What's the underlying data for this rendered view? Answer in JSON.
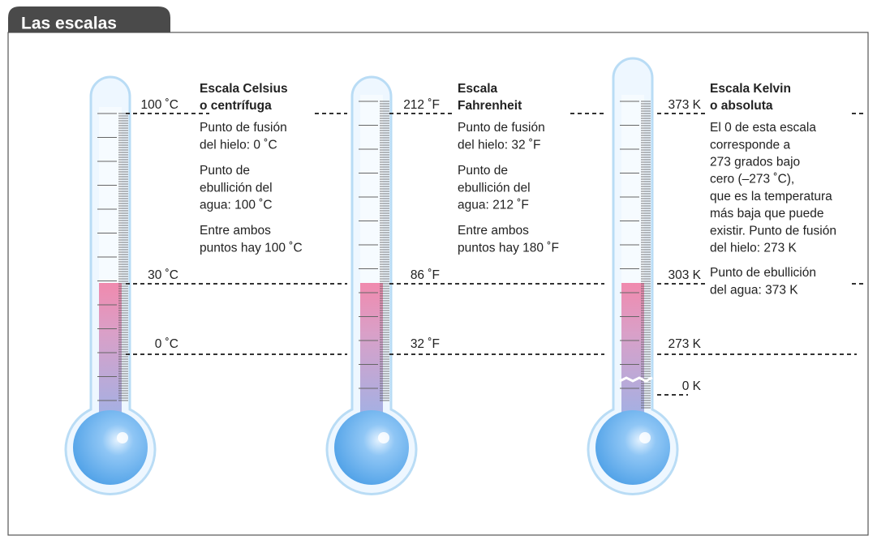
{
  "header": {
    "title": "Las escalas"
  },
  "thermometers": [
    {
      "title": [
        "Escala Celsius",
        "o centrífuga"
      ],
      "marks": [
        "100 ˚C",
        "30 ˚C",
        "0 ˚C"
      ],
      "paragraphs": [
        [
          "Punto de fusión",
          "del hielo: 0 ˚C"
        ],
        [
          "Punto de",
          "ebullición del",
          "agua: 100 ˚C"
        ],
        [
          "Entre ambos",
          "puntos hay 100 ˚C"
        ]
      ]
    },
    {
      "title": [
        "Escala",
        "Fahrenheit"
      ],
      "marks": [
        "212 ˚F",
        "86 ˚F",
        "32 ˚F"
      ],
      "paragraphs": [
        [
          "Punto de fusión",
          "del hielo: 32 ˚F"
        ],
        [
          "Punto de",
          "ebullición del",
          "agua: 212 ˚F"
        ],
        [
          "Entre ambos",
          "puntos hay 180 ˚F"
        ]
      ]
    },
    {
      "title": [
        "Escala Kelvin",
        "o absoluta"
      ],
      "marks": [
        "373 K",
        "303 K",
        "273 K",
        "0 K"
      ],
      "paragraphs": [
        [
          "El 0 de esta escala",
          "corresponde a",
          "273 grados bajo",
          "cero (–273 ˚C),",
          "que es la temperatura",
          "más baja que puede",
          "existir. Punto de fusión",
          "del hielo: 273 K"
        ],
        [
          "Punto de ebullición",
          "del agua: 373 K"
        ]
      ]
    }
  ]
}
